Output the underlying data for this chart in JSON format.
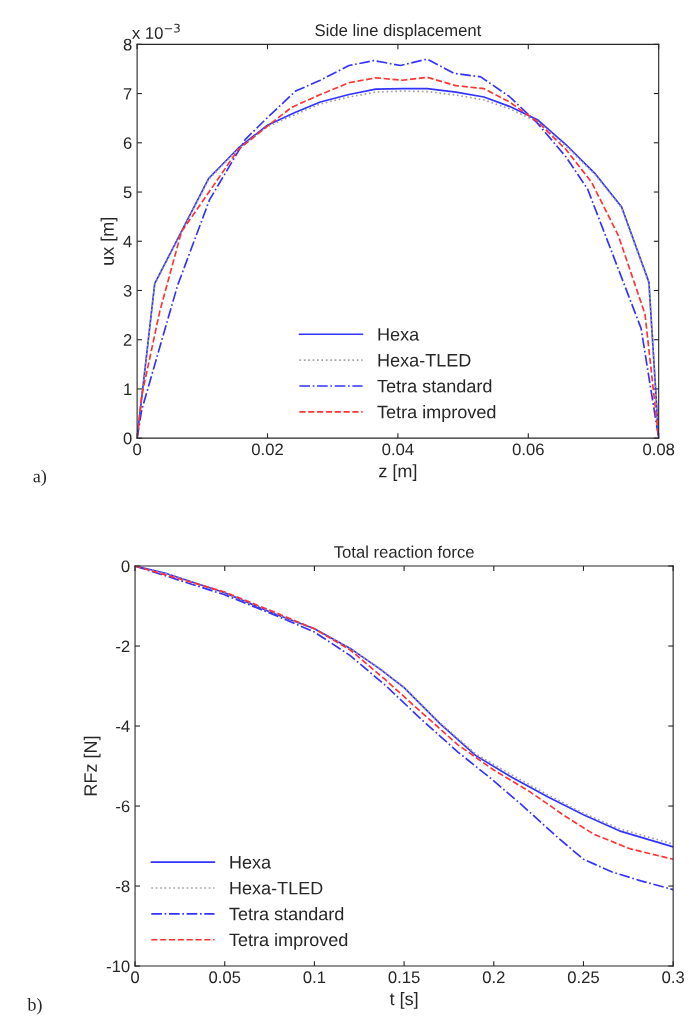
{
  "chart_data": [
    {
      "type": "line",
      "title": "Side line displacement",
      "xlabel": "z [m]",
      "ylabel": "ux [m]",
      "xlim": [
        0,
        0.08
      ],
      "ylim": [
        0,
        8
      ],
      "xticks": [
        0,
        0.02,
        0.04,
        0.06,
        0.08
      ],
      "yticks": [
        0,
        1,
        2,
        3,
        4,
        5,
        6,
        7,
        8
      ],
      "grid": false,
      "legend": "bottom",
      "annotations": [
        "x 10$^{−3}$",
        "a)"
      ],
      "series": [
        {
          "name": "Hexa",
          "color": "#3333ff",
          "line_style": "solid",
          "x": [
            0,
            0.0027,
            0.011,
            0.0155,
            0.0199,
            0.0243,
            0.0281,
            0.0325,
            0.0366,
            0.0407,
            0.0445,
            0.0489,
            0.0532,
            0.0571,
            0.0614,
            0.0658,
            0.0702,
            0.0743,
            0.0785,
            0.08
          ],
          "values": [
            0,
            3.14,
            5.28,
            5.89,
            6.35,
            6.62,
            6.83,
            6.98,
            7.09,
            7.1,
            7.1,
            7.03,
            6.93,
            6.74,
            6.47,
            5.96,
            5.38,
            4.7,
            3.17,
            0
          ]
        },
        {
          "name": "Hexa-TLED",
          "color": "#a0a0a0",
          "line_style": "dotted",
          "x": [
            0,
            0.0027,
            0.011,
            0.0155,
            0.0199,
            0.0243,
            0.0281,
            0.0325,
            0.0366,
            0.0407,
            0.0445,
            0.0489,
            0.0532,
            0.0571,
            0.0614,
            0.0658,
            0.0702,
            0.0743,
            0.0785,
            0.08
          ],
          "values": [
            0,
            3.12,
            5.26,
            5.87,
            6.32,
            6.58,
            6.79,
            6.93,
            7.03,
            7.05,
            7.04,
            6.97,
            6.87,
            6.69,
            6.43,
            5.93,
            5.36,
            4.68,
            3.15,
            0
          ]
        },
        {
          "name": "Tetra standard",
          "color": "#3333ff",
          "line_style": "dashdot",
          "x": [
            0,
            0.0007,
            0.0062,
            0.0111,
            0.0166,
            0.0199,
            0.0243,
            0.0281,
            0.0325,
            0.0363,
            0.0404,
            0.0445,
            0.0486,
            0.0527,
            0.0571,
            0.0614,
            0.0658,
            0.0691,
            0.0729,
            0.0773,
            0.08
          ],
          "values": [
            0,
            0.57,
            3.1,
            4.84,
            6.07,
            6.5,
            7.05,
            7.27,
            7.57,
            7.67,
            7.57,
            7.7,
            7.41,
            7.34,
            6.94,
            6.4,
            5.71,
            5.06,
            3.75,
            2.23,
            0
          ]
        },
        {
          "name": "Tetra improved",
          "color": "#ff3333",
          "line_style": "dashed",
          "x": [
            0,
            0.0007,
            0.0035,
            0.0068,
            0.0117,
            0.0155,
            0.0199,
            0.0237,
            0.0281,
            0.0325,
            0.0366,
            0.0407,
            0.0445,
            0.0489,
            0.0532,
            0.0571,
            0.0614,
            0.0658,
            0.0697,
            0.0738,
            0.0779,
            0.08
          ],
          "values": [
            0,
            0.86,
            2.59,
            4.19,
            5.13,
            5.86,
            6.33,
            6.72,
            6.98,
            7.22,
            7.32,
            7.27,
            7.33,
            7.16,
            7.1,
            6.83,
            6.43,
            5.86,
            5.2,
            4.12,
            2.52,
            0
          ]
        }
      ]
    },
    {
      "type": "line",
      "title": "Total reaction force",
      "xlabel": "t [s]",
      "ylabel": "RFz [N]",
      "xlim": [
        0,
        0.3
      ],
      "ylim": [
        -10,
        0
      ],
      "xticks": [
        0,
        0.05,
        0.1,
        0.15,
        0.2,
        0.25,
        0.3
      ],
      "yticks": [
        -10,
        -8,
        -6,
        -4,
        -2,
        0
      ],
      "grid": false,
      "legend": "bottom left",
      "annotations": [
        "b)"
      ],
      "series": [
        {
          "name": "Hexa",
          "color": "#3333ff",
          "line_style": "solid",
          "x": [
            0,
            0.017,
            0.05,
            0.077,
            0.1,
            0.12,
            0.137,
            0.15,
            0.17,
            0.19,
            0.21,
            0.23,
            0.25,
            0.27,
            0.3
          ],
          "values": [
            0,
            -0.18,
            -0.67,
            -1.18,
            -1.57,
            -2.06,
            -2.59,
            -3.04,
            -3.94,
            -4.74,
            -5.28,
            -5.77,
            -6.22,
            -6.62,
            -7.02
          ]
        },
        {
          "name": "Hexa-TLED",
          "color": "#a0a0a0",
          "line_style": "dotted",
          "x": [
            0,
            0.017,
            0.05,
            0.077,
            0.1,
            0.12,
            0.137,
            0.15,
            0.17,
            0.19,
            0.21,
            0.23,
            0.25,
            0.27,
            0.3
          ],
          "values": [
            0,
            -0.18,
            -0.67,
            -1.18,
            -1.57,
            -2.06,
            -2.58,
            -3.03,
            -3.92,
            -4.7,
            -5.22,
            -5.72,
            -6.18,
            -6.57,
            -6.95
          ]
        },
        {
          "name": "Tetra standard",
          "color": "#3333ff",
          "line_style": "dashdot",
          "x": [
            0,
            0.05,
            0.077,
            0.1,
            0.12,
            0.14,
            0.16,
            0.18,
            0.2,
            0.216,
            0.236,
            0.25,
            0.266,
            0.282,
            0.3
          ],
          "values": [
            0,
            -0.72,
            -1.21,
            -1.65,
            -2.24,
            -3.0,
            -3.85,
            -4.65,
            -5.37,
            -5.99,
            -6.8,
            -7.33,
            -7.65,
            -7.87,
            -8.09
          ]
        },
        {
          "name": "Tetra improved",
          "color": "#ff3333",
          "line_style": "dashed",
          "x": [
            0,
            0.05,
            0.077,
            0.1,
            0.12,
            0.14,
            0.16,
            0.18,
            0.2,
            0.22,
            0.24,
            0.256,
            0.276,
            0.3
          ],
          "values": [
            0,
            -0.65,
            -1.14,
            -1.57,
            -2.1,
            -2.86,
            -3.67,
            -4.47,
            -5.1,
            -5.64,
            -6.26,
            -6.71,
            -7.07,
            -7.33
          ]
        }
      ]
    }
  ]
}
